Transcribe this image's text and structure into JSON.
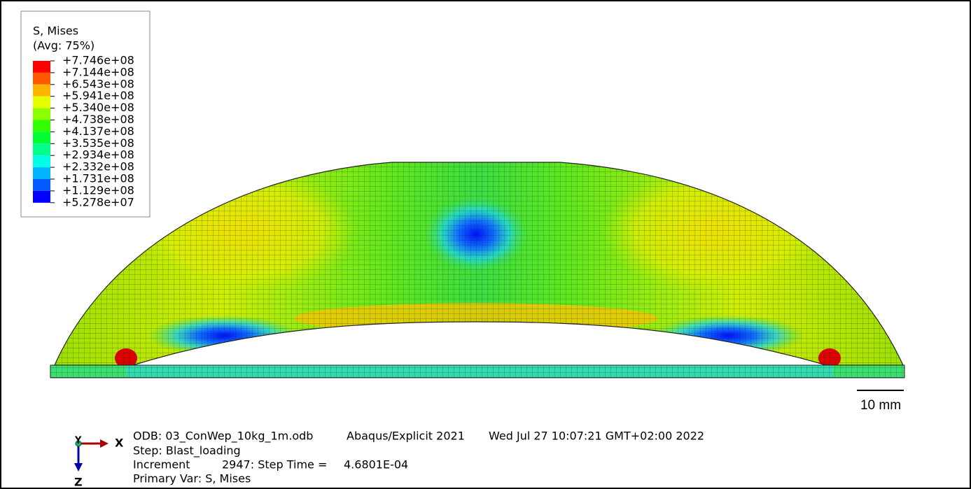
{
  "legend": {
    "title": [
      "S, Mises",
      "(Avg: 75%)"
    ],
    "labels": [
      "+7.746e+08",
      "+7.144e+08",
      "+6.543e+08",
      "+5.941e+08",
      "+5.340e+08",
      "+4.738e+08",
      "+4.137e+08",
      "+3.535e+08",
      "+2.934e+08",
      "+2.332e+08",
      "+1.731e+08",
      "+1.129e+08",
      "+5.278e+07"
    ],
    "colors": [
      "#ff0000",
      "#ff5a00",
      "#ffb400",
      "#e6ff00",
      "#8cff00",
      "#32ff00",
      "#00ff32",
      "#00ff8c",
      "#00ffe6",
      "#00b4ff",
      "#005aff",
      "#0000ff"
    ]
  },
  "scale_bar": "10 mm",
  "triad": {
    "x": "X",
    "y": "Y",
    "z": "Z"
  },
  "info": {
    "odb": "ODB: 03_ConWep_10kg_1m.odb",
    "solver": "Abaqus/Explicit 2021",
    "date": "Wed Jul 27 10:07:21 GMT+02:00 2022",
    "step": "Step: Blast_loading",
    "increment": "Increment",
    "increment_value": "2947: Step Time =",
    "step_time": "4.6801E-04",
    "primary_var": "Primary Var: S, Mises"
  }
}
